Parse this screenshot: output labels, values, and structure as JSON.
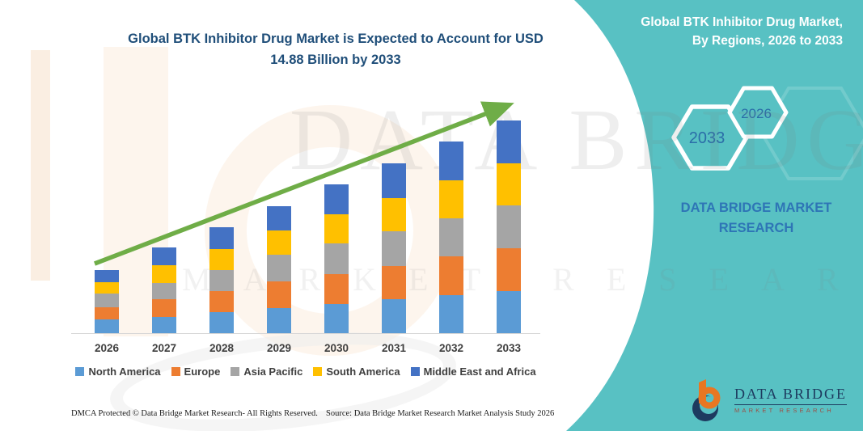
{
  "title": {
    "line1": "Global BTK Inhibitor Drug Market is Expected to Account for USD",
    "line2": "14.88 Billion by 2033"
  },
  "side_panel": {
    "heading_line1": "Global BTK Inhibitor Drug Market,",
    "heading_line2": "By Regions, 2026 to 2033",
    "hexagons": [
      {
        "label": "2033"
      },
      {
        "label": "2026"
      }
    ],
    "brand_line1": "DATA BRIDGE MARKET",
    "brand_line2": "RESEARCH"
  },
  "watermark": {
    "line1": "DATA BRIDGE",
    "line2": "MARKET RESEARCH"
  },
  "logo": {
    "name": "DATA BRIDGE",
    "subtitle": "MARKET RESEARCH"
  },
  "footer": {
    "left": "DMCA Protected © Data Bridge Market Research-  All Rights Reserved.",
    "source": "Source: Data Bridge Market Research  Market Analysis Study 2026"
  },
  "colors": {
    "teal_background": "#58c1c3",
    "title_navy": "#1f4e79",
    "hexagon_label_blue": "#2b6ea8",
    "brand_blue": "#2e75b6",
    "arrow_green": "#6fad47",
    "axis_line": "#d6d6d6",
    "logo_orange": "#e87722",
    "logo_navy": "#1d3a5f"
  },
  "chart_data": {
    "type": "bar",
    "stacked": true,
    "unit": "USD Billion",
    "categories": [
      "2026",
      "2027",
      "2028",
      "2029",
      "2030",
      "2031",
      "2032",
      "2033"
    ],
    "series": [
      {
        "name": "North America",
        "color": "#5b9bd5",
        "values": [
          0.97,
          1.15,
          1.45,
          1.78,
          2.05,
          2.35,
          2.67,
          2.96
        ]
      },
      {
        "name": "Europe",
        "color": "#ed7d31",
        "values": [
          0.83,
          1.2,
          1.47,
          1.86,
          2.1,
          2.37,
          2.68,
          2.97
        ]
      },
      {
        "name": "Asia Pacific",
        "color": "#a5a5a5",
        "values": [
          0.95,
          1.18,
          1.5,
          1.83,
          2.12,
          2.39,
          2.69,
          3.0
        ]
      },
      {
        "name": "South America",
        "color": "#ffc000",
        "values": [
          0.81,
          1.22,
          1.48,
          1.7,
          2.05,
          2.36,
          2.66,
          2.94
        ]
      },
      {
        "name": "Middle East and Africa",
        "color": "#4472c4",
        "values": [
          0.87,
          1.26,
          1.51,
          1.74,
          2.09,
          2.42,
          2.71,
          3.01
        ]
      }
    ],
    "annotations": [
      "upward trend arrow from 2026 to 2033"
    ],
    "y_axis_visible": false,
    "gridlines": false,
    "legend_position": "bottom"
  }
}
